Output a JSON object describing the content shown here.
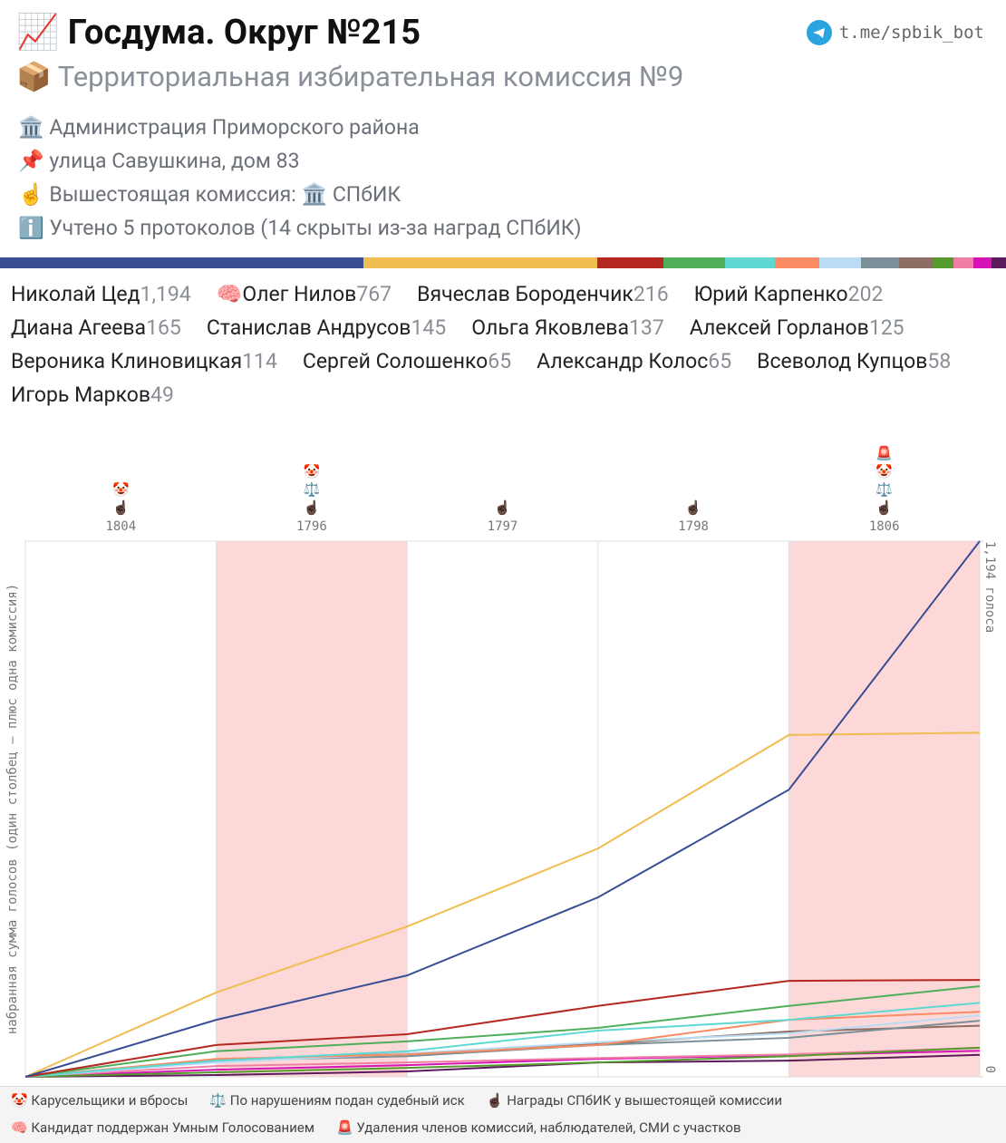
{
  "header": {
    "title_icon": "📈",
    "title": "Госдума. Округ №215",
    "link": "t.me/spbik_bot",
    "subtitle_icon": "📦",
    "subtitle": "Территориальная избирательная комиссия №9",
    "info": [
      {
        "icon": "🏛️",
        "text": "Администрация Приморского района"
      },
      {
        "icon": "📌",
        "text": "улица Савушкина, дом 83"
      },
      {
        "icon": "☝️",
        "text": "Вышестоящая комиссия: 🏛️ СПбИК"
      },
      {
        "icon": "ℹ️",
        "text": "Учтено 5 протоколов (14 скрыты из-за наград СПбИК)"
      }
    ]
  },
  "chart_data": {
    "type": "line",
    "ylabel": "набранная сумма голосов (один столбец — плюс одна комиссия)",
    "categories": [
      "1804",
      "1796",
      "1797",
      "1798",
      "1806"
    ],
    "markers": [
      [
        "🤡",
        "☝🏿"
      ],
      [
        "🤡",
        "⚖️",
        "☝🏿"
      ],
      [
        "☝🏿"
      ],
      [
        "☝🏿"
      ],
      [
        "🚨",
        "🤡",
        "⚖️",
        "☝🏿"
      ]
    ],
    "highlight": [
      false,
      true,
      false,
      false,
      true
    ],
    "ylim": [
      0,
      1194
    ],
    "yticks": [
      0,
      {
        "value": 1194,
        "label": "1,194 голоса"
      }
    ],
    "grid": true,
    "series": [
      {
        "name": "Николай Цед",
        "color": "#3a4e96",
        "values": [
          127,
          226,
          400,
          640,
          1194
        ],
        "total_label": "1,194"
      },
      {
        "name": "Олег Нилов",
        "badge": "🧠",
        "color": "#f0bd50",
        "values": [
          188,
          335,
          509,
          762,
          767
        ],
        "total_label": "767"
      },
      {
        "name": "Вячеслав Бороденчик",
        "color": "#b5281f",
        "values": [
          71,
          95,
          158,
          214,
          216
        ],
        "total_label": "216"
      },
      {
        "name": "Юрий Карпенко",
        "color": "#4fae5a",
        "values": [
          57,
          79,
          109,
          158,
          202
        ],
        "total_label": "202"
      },
      {
        "name": "Диана Агеева",
        "color": "#5fd8d3",
        "values": [
          36,
          57,
          103,
          127,
          165
        ],
        "total_label": "165"
      },
      {
        "name": "Станислав Андрусов",
        "color": "#f98c63",
        "values": [
          40,
          50,
          71,
          127,
          145
        ],
        "total_label": "145"
      },
      {
        "name": "Ольга Яковлева",
        "color": "#b9dcf4",
        "values": [
          32,
          52,
          77,
          97,
          137
        ],
        "total_label": "137"
      },
      {
        "name": "Алексей Горланов",
        "color": "#7b8f99",
        "values": [
          36,
          46,
          71,
          87,
          125
        ],
        "total_label": "125"
      },
      {
        "name": "Вероника Клиновицкая",
        "color": "#8d6e63",
        "values": [
          36,
          52,
          73,
          101,
          114
        ],
        "total_label": "114"
      },
      {
        "name": "Сергей Солошенко",
        "color": "#559a2c",
        "values": [
          10,
          20,
          32,
          46,
          65
        ],
        "total_label": "65"
      },
      {
        "name": "Александр Колос",
        "color": "#f07fa6",
        "values": [
          24,
          32,
          42,
          50,
          65
        ],
        "total_label": "65"
      },
      {
        "name": "Всеволод Купцов",
        "color": "#d614b5",
        "values": [
          16,
          26,
          40,
          48,
          58
        ],
        "total_label": "58"
      },
      {
        "name": "Игорь Марков",
        "color": "#5b1a5b",
        "values": [
          4,
          12,
          32,
          36,
          49
        ],
        "total_label": "49"
      }
    ]
  },
  "footer": {
    "rows": [
      [
        {
          "icon": "🤡",
          "text": "Карусельщики и вбросы"
        },
        {
          "icon": "⚖️",
          "text": "По нарушениям подан судебный иск"
        },
        {
          "icon": "☝🏿",
          "text": "Награды СПбИК у вышестоящей комиссии"
        }
      ],
      [
        {
          "icon": "🧠",
          "text": "Кандидат поддержан Умным Голосованием"
        },
        {
          "icon": "🚨",
          "text": "Удаления членов комиссий, наблюдателей, СМИ с участков"
        }
      ]
    ]
  }
}
